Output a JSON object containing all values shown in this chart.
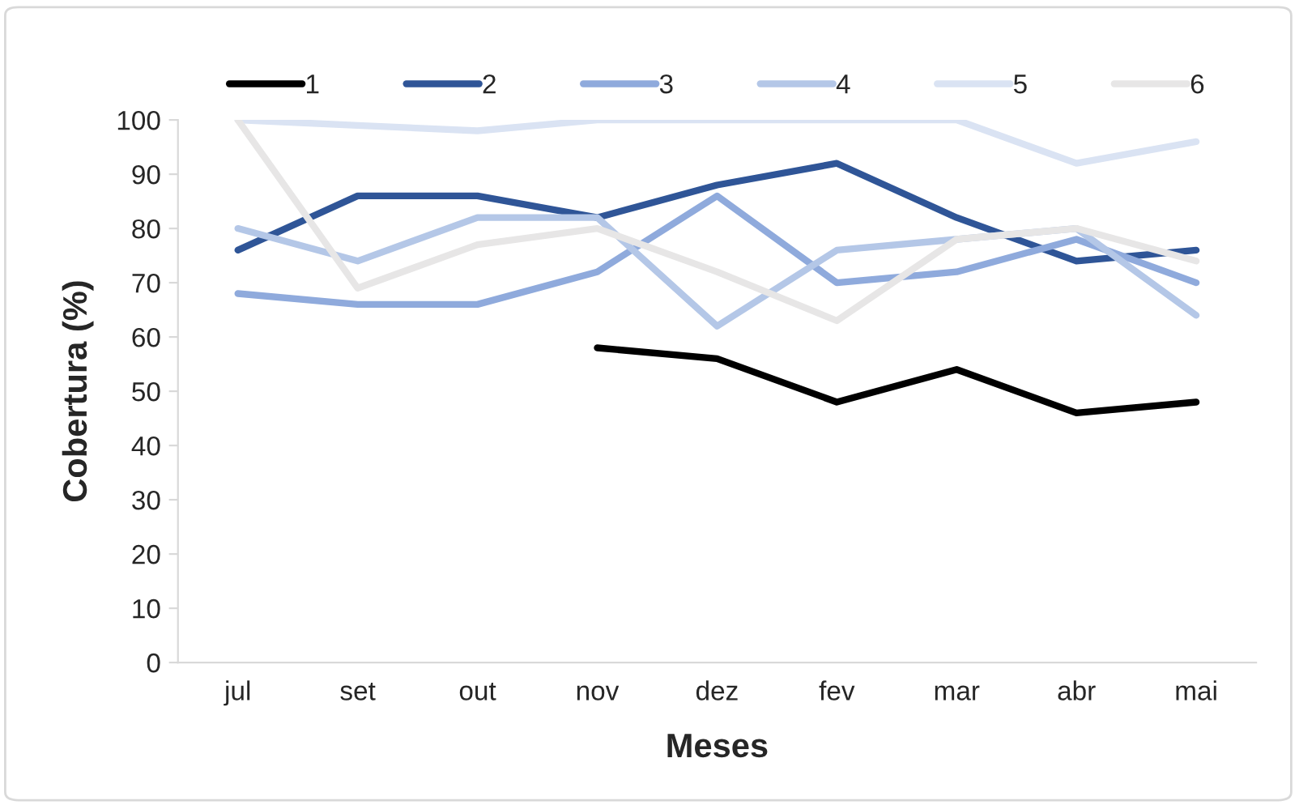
{
  "chart_data": {
    "type": "line",
    "xlabel": "Meses",
    "ylabel": "Cobertura (%)",
    "categories": [
      "jul",
      "set",
      "out",
      "nov",
      "dez",
      "fev",
      "mar",
      "abr",
      "mai"
    ],
    "series": [
      {
        "name": "1",
        "color": "#000000",
        "values": [
          null,
          null,
          null,
          58,
          56,
          48,
          54,
          46,
          48
        ]
      },
      {
        "name": "2",
        "color": "#2f5597",
        "values": [
          76,
          86,
          86,
          82,
          88,
          92,
          82,
          74,
          76
        ]
      },
      {
        "name": "3",
        "color": "#8faadc",
        "values": [
          68,
          66,
          66,
          72,
          86,
          70,
          72,
          78,
          70
        ]
      },
      {
        "name": "4",
        "color": "#b4c7e7",
        "values": [
          80,
          74,
          82,
          82,
          62,
          76,
          78,
          80,
          64
        ]
      },
      {
        "name": "5",
        "color": "#dae3f3",
        "values": [
          100,
          99,
          98,
          100,
          100,
          100,
          100,
          92,
          96
        ]
      },
      {
        "name": "6",
        "color": "#e7e6e6",
        "values": [
          100,
          69,
          77,
          80,
          72,
          63,
          78,
          80,
          74
        ]
      }
    ],
    "ylim": [
      0,
      100
    ],
    "yticks": [
      0,
      10,
      20,
      30,
      40,
      50,
      60,
      70,
      80,
      90,
      100
    ],
    "grid": false,
    "legend": "top",
    "marker": "none",
    "line_style": "solid"
  }
}
